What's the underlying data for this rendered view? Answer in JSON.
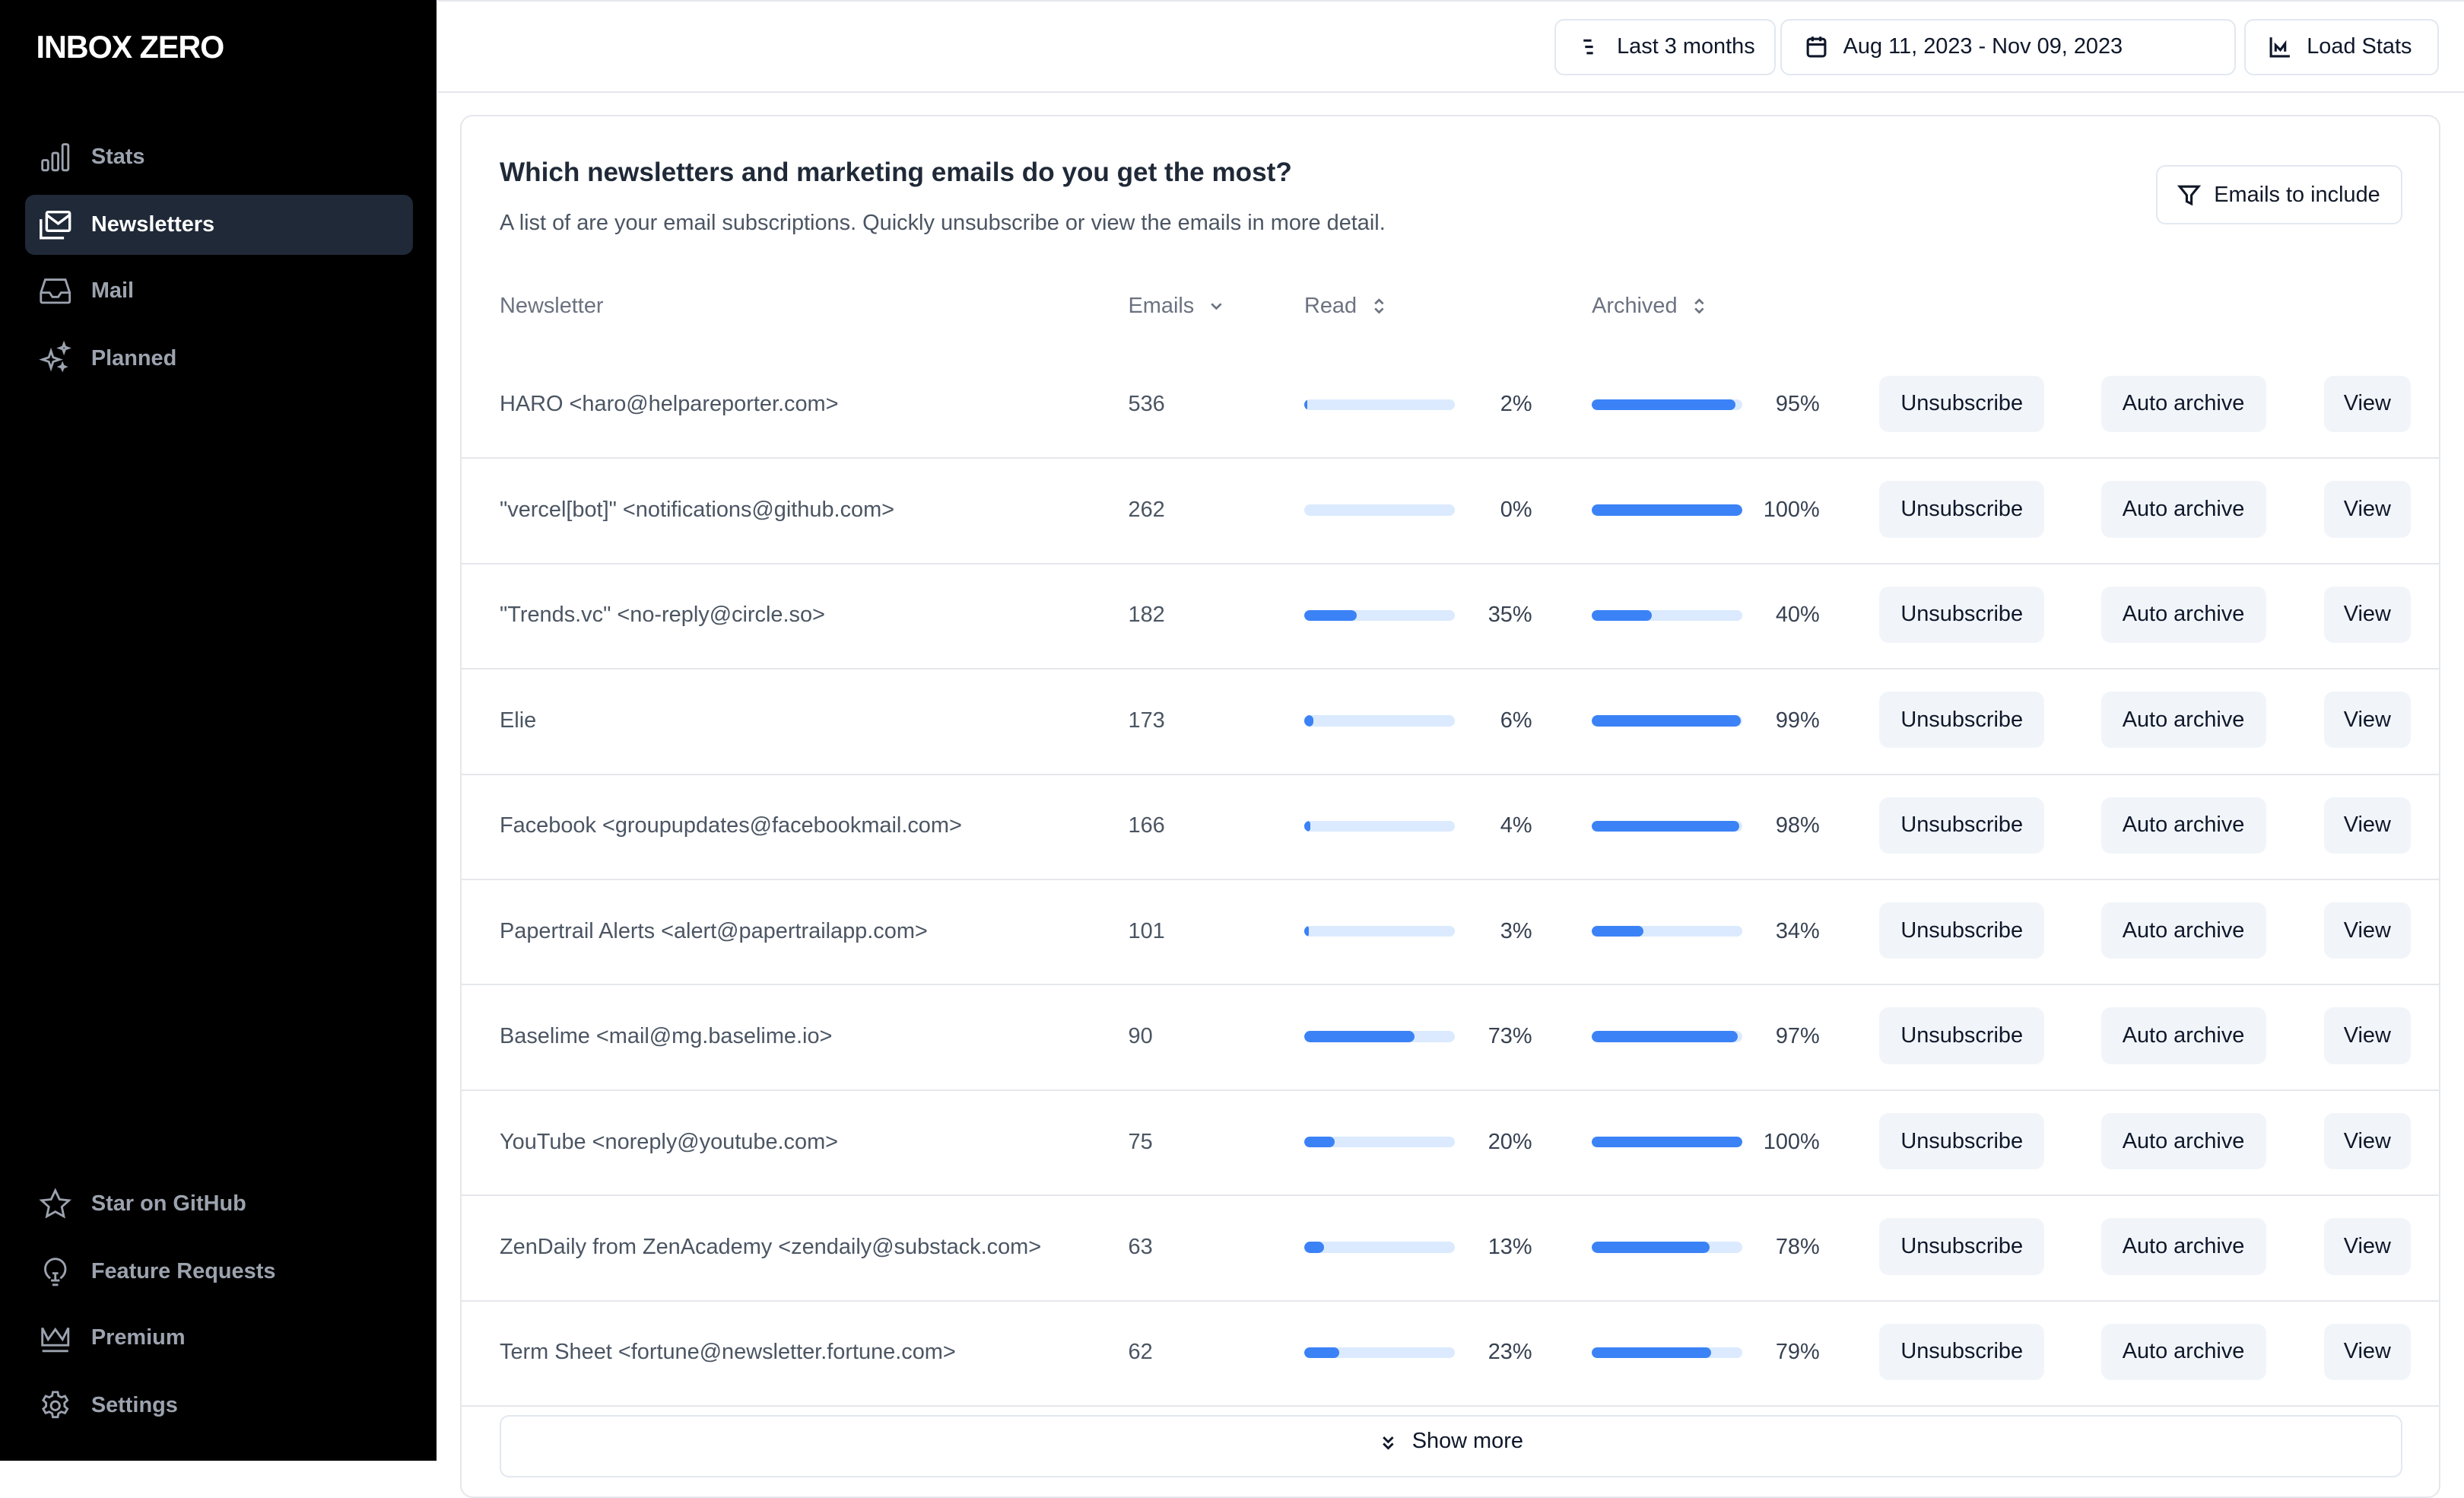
{
  "app": {
    "logo": "INBOX ZERO"
  },
  "sidebar": {
    "items": [
      {
        "label": "Stats",
        "icon": "bar-chart-icon",
        "active": false
      },
      {
        "label": "Newsletters",
        "icon": "newsletter-mail-icon",
        "active": true
      },
      {
        "label": "Mail",
        "icon": "inbox-icon",
        "active": false
      },
      {
        "label": "Planned",
        "icon": "sparkles-icon",
        "active": false
      }
    ],
    "bottom_items": [
      {
        "label": "Star on GitHub",
        "icon": "star-icon"
      },
      {
        "label": "Feature Requests",
        "icon": "lightbulb-icon"
      },
      {
        "label": "Premium",
        "icon": "crown-icon"
      },
      {
        "label": "Settings",
        "icon": "gear-icon"
      }
    ]
  },
  "toolbar": {
    "period": "Last 3 months",
    "date_range": "Aug 11, 2023 - Nov 09, 2023",
    "load_stats": "Load Stats"
  },
  "card": {
    "title": "Which newsletters and marketing emails do you get the most?",
    "subtitle": "A list of are your email subscriptions. Quickly unsubscribe or view the emails in more detail.",
    "filter_button": "Emails to include",
    "columns": {
      "newsletter": "Newsletter",
      "emails": "Emails",
      "read": "Read",
      "archived": "Archived"
    },
    "actions": {
      "unsubscribe": "Unsubscribe",
      "auto_archive": "Auto archive",
      "view": "View"
    },
    "show_more": "Show more"
  },
  "colors": {
    "accent": "#3b82f6",
    "track": "#dbeafe",
    "sidebar": "#000000",
    "active_item": "#1f2937"
  },
  "rows": [
    {
      "name": "HARO <haro@helpareporter.com>",
      "emails": "536",
      "read": 2,
      "archived": 95
    },
    {
      "name": "\"vercel[bot]\" <notifications@github.com>",
      "emails": "262",
      "read": 0,
      "archived": 100
    },
    {
      "name": "\"Trends.vc\" <no-reply@circle.so>",
      "emails": "182",
      "read": 35,
      "archived": 40
    },
    {
      "name": "Elie",
      "emails": "173",
      "read": 6,
      "archived": 99
    },
    {
      "name": "Facebook <groupupdates@facebookmail.com>",
      "emails": "166",
      "read": 4,
      "archived": 98
    },
    {
      "name": "Papertrail Alerts <alert@papertrailapp.com>",
      "emails": "101",
      "read": 3,
      "archived": 34
    },
    {
      "name": "Baselime <mail@mg.baselime.io>",
      "emails": "90",
      "read": 73,
      "archived": 97
    },
    {
      "name": "YouTube <noreply@youtube.com>",
      "emails": "75",
      "read": 20,
      "archived": 100
    },
    {
      "name": "ZenDaily from ZenAcademy <zendaily@substack.com>",
      "emails": "63",
      "read": 13,
      "archived": 78
    },
    {
      "name": "Term Sheet <fortune@newsletter.fortune.com>",
      "emails": "62",
      "read": 23,
      "archived": 79
    }
  ]
}
